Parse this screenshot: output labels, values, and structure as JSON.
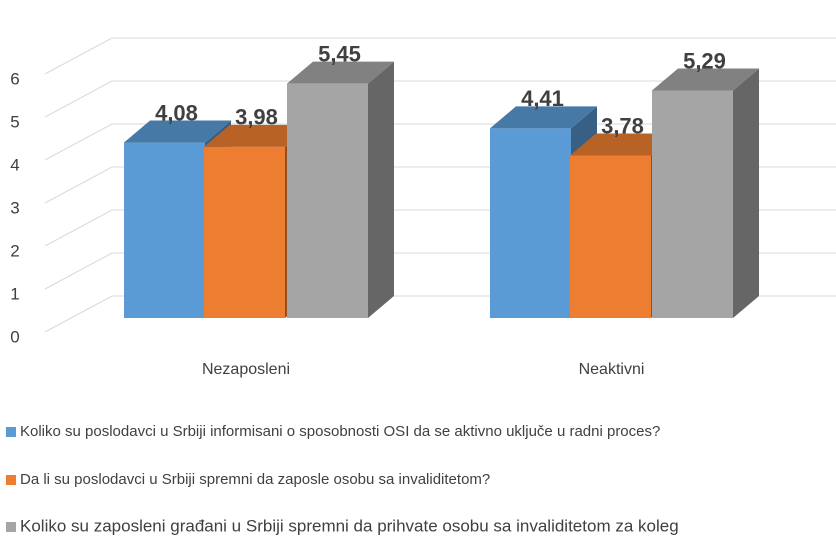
{
  "chart_data": {
    "type": "bar3d",
    "categories": [
      "Nezaposleni",
      "Neaktivni"
    ],
    "series": [
      {
        "name": "Koliko su poslodavci u Srbiji informisani o sposobnosti OSI da se aktivno uključe u radni proces?",
        "color": "#5b9bd5",
        "values": [
          4.08,
          4.41
        ],
        "value_labels": [
          "4,08",
          "4,41"
        ]
      },
      {
        "name": "Da li su poslodavci u Srbiji spremni da zaposle osobu sa invaliditetom?",
        "color": "#ed7d31",
        "values": [
          3.98,
          3.78
        ],
        "value_labels": [
          "3,98",
          "3,78"
        ]
      },
      {
        "name": "Koliko su zaposleni građani u Srbiji spremni da prihvate osobu sa invaliditetom za koleg",
        "color": "#a5a5a5",
        "values": [
          5.45,
          5.29
        ],
        "value_labels": [
          "5,45",
          "5,29"
        ]
      }
    ],
    "ylim": [
      0,
      7
    ],
    "yticks": [
      0,
      1,
      2,
      3,
      4,
      5,
      6
    ],
    "grid": true
  }
}
